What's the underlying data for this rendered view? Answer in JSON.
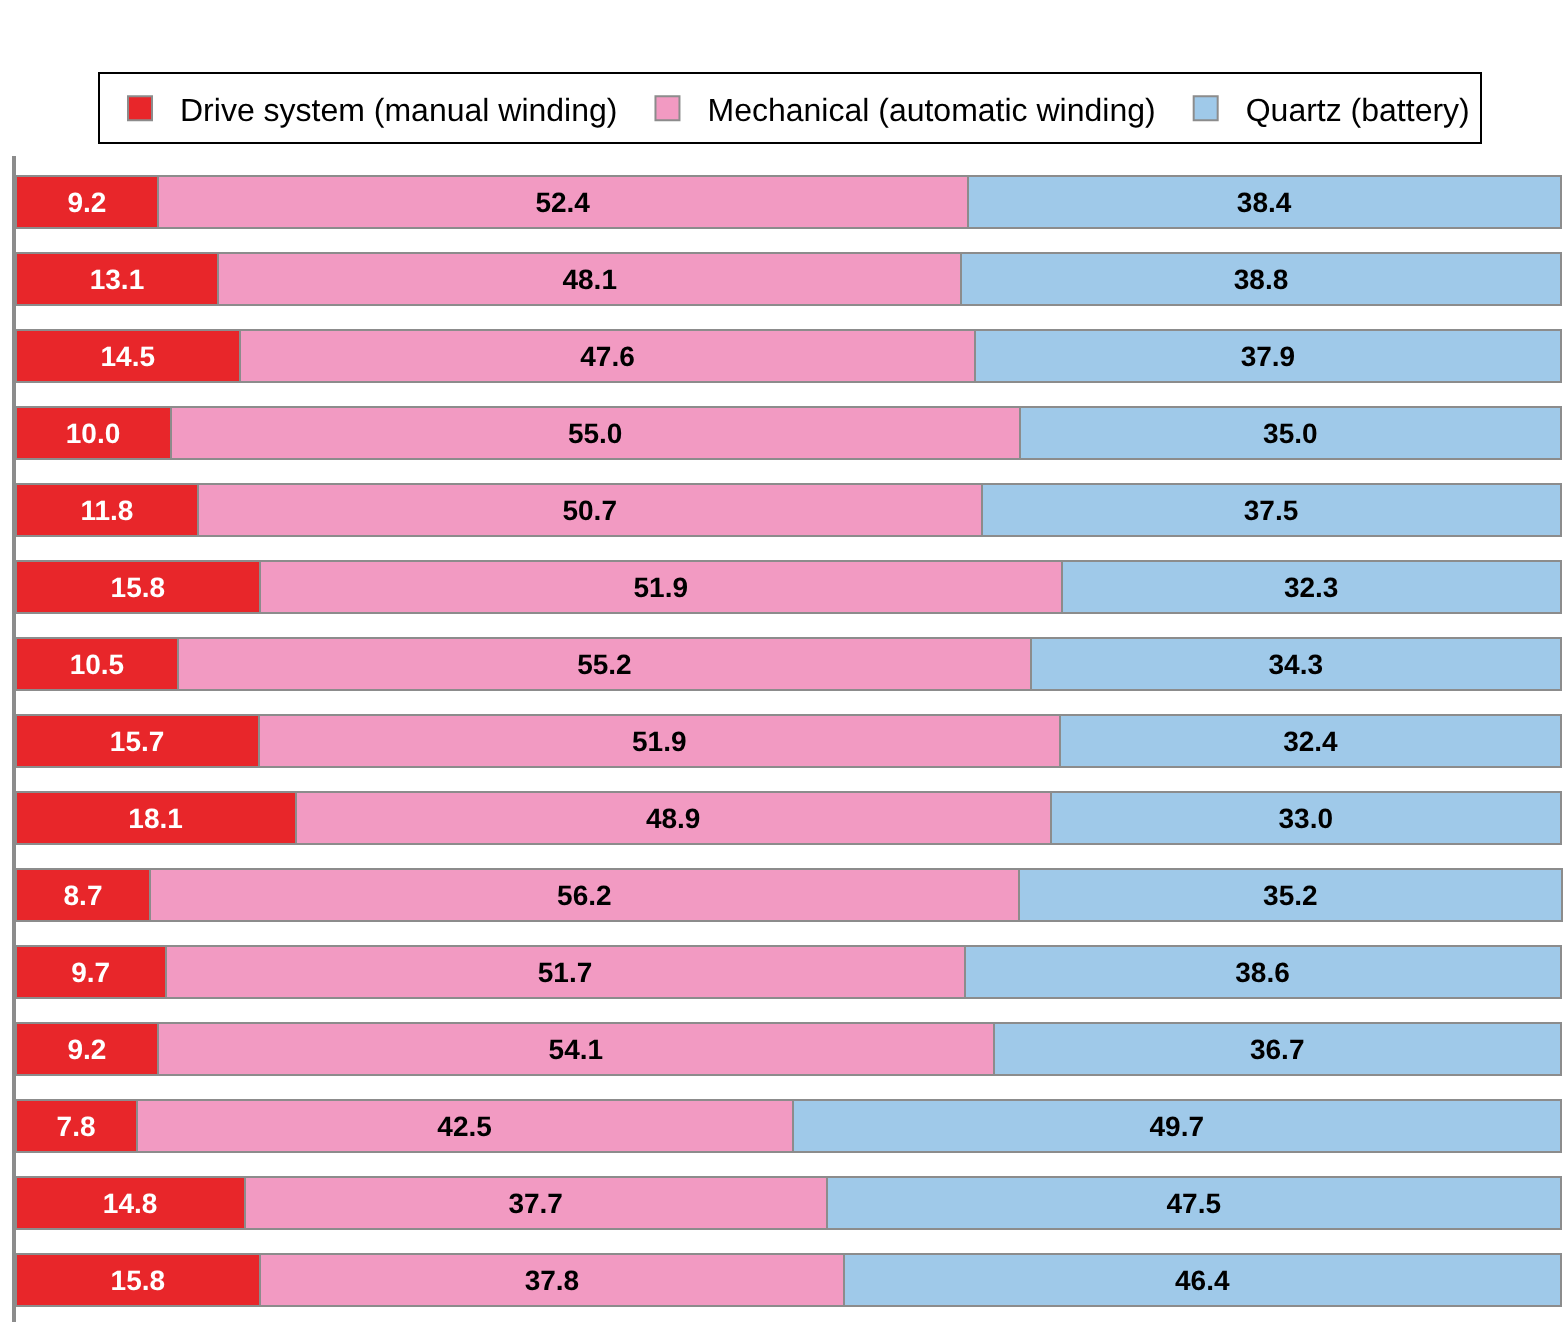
{
  "chart_data": {
    "type": "bar",
    "orientation": "horizontal",
    "stacked": true,
    "data_labels": true,
    "legend": "top",
    "xlim": [
      0,
      100.2
    ],
    "tick_labels": false,
    "categories": [
      null,
      null,
      null,
      null,
      null,
      null,
      null,
      null,
      null,
      null,
      null,
      null,
      null,
      null,
      null
    ],
    "series": [
      {
        "name": "Drive system (manual winding)",
        "color": "#e8262a",
        "values": [
          9.2,
          13.1,
          14.5,
          10.0,
          11.8,
          15.8,
          10.5,
          15.7,
          18.1,
          8.7,
          9.7,
          9.2,
          7.8,
          14.8,
          15.8
        ],
        "value_labels": [
          "9.2",
          "13.1",
          "14.5",
          "10.0",
          "11.8",
          "15.8",
          "10.5",
          "15.7",
          "18.1",
          "8.7",
          "9.7",
          "9.2",
          "7.8",
          "14.8",
          "15.8"
        ]
      },
      {
        "name": "Mechanical (automatic winding)",
        "color": "#f29ac2",
        "values": [
          52.4,
          48.1,
          47.6,
          55.0,
          50.7,
          51.9,
          55.2,
          51.9,
          48.9,
          56.2,
          51.7,
          54.1,
          42.5,
          37.7,
          37.8
        ],
        "value_labels": [
          "52.4",
          "48.1",
          "47.6",
          "55.0",
          "50.7",
          "51.9",
          "55.2",
          "51.9",
          "48.9",
          "56.2",
          "51.7",
          "54.1",
          "42.5",
          "37.7",
          "37.8"
        ]
      },
      {
        "name": "Quartz (battery)",
        "color": "#9fc9e9",
        "values": [
          38.4,
          38.8,
          37.9,
          35.0,
          37.5,
          32.3,
          34.3,
          32.4,
          33.0,
          35.2,
          38.6,
          36.7,
          49.7,
          47.5,
          46.4
        ],
        "value_labels": [
          "38.4",
          "38.8",
          "37.9",
          "35.0",
          "37.5",
          "32.3",
          "34.3",
          "32.4",
          "33.0",
          "35.2",
          "38.6",
          "36.7",
          "49.7",
          "47.5",
          "46.4"
        ]
      }
    ]
  }
}
